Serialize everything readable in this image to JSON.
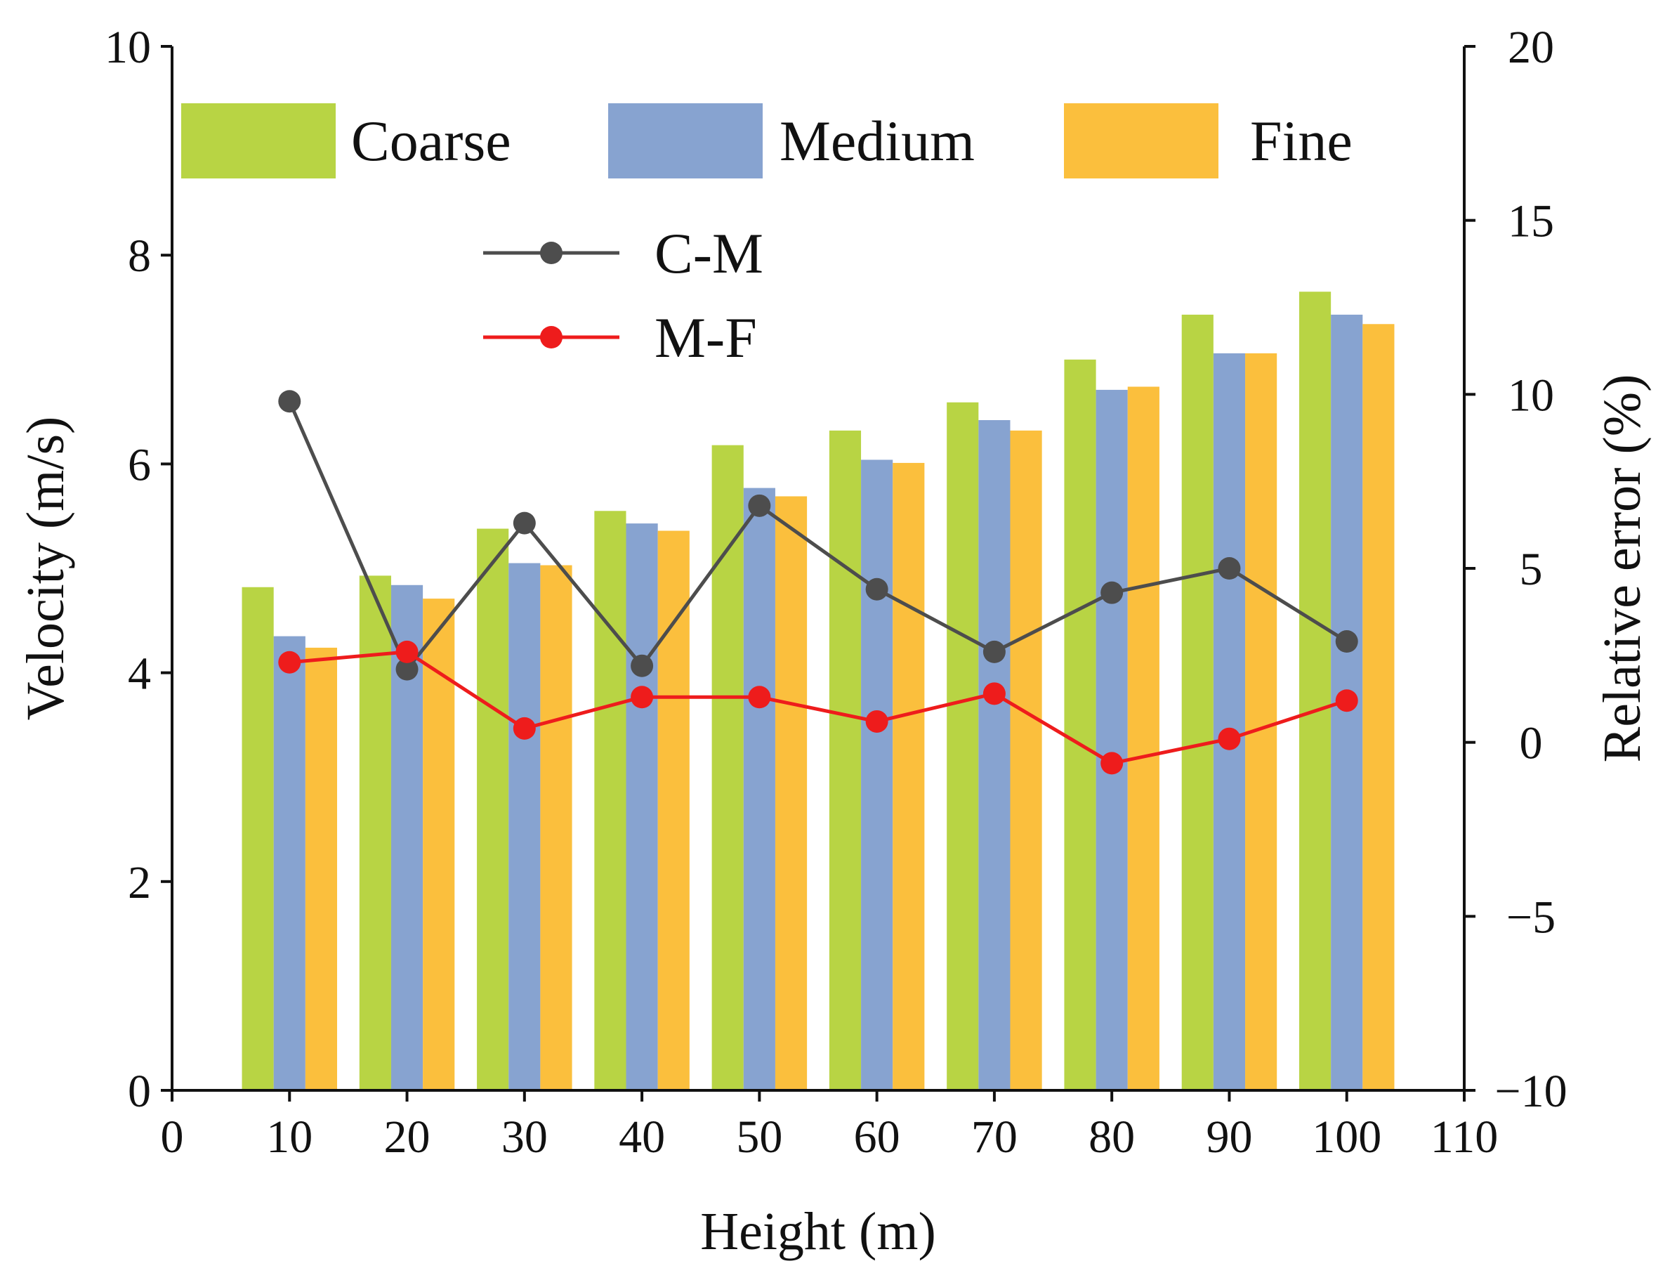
{
  "chart_data": {
    "type": "bar",
    "xlabel": "Height (m)",
    "ylabel": "Velocity (m/s)",
    "y2label": "Relative error (%)",
    "xlim": [
      0,
      110
    ],
    "ylim": [
      0,
      10
    ],
    "y2lim": [
      -10,
      20
    ],
    "xticks": [
      0,
      10,
      20,
      30,
      40,
      50,
      60,
      70,
      80,
      90,
      100,
      110
    ],
    "yticks": [
      0,
      2,
      4,
      6,
      8,
      10
    ],
    "y2ticks": [
      -10,
      -5,
      0,
      5,
      10,
      15,
      20
    ],
    "y2tick_labels": [
      "−10",
      "−5",
      "0",
      "5",
      "10",
      "15",
      "20"
    ],
    "categories": [
      10,
      20,
      30,
      40,
      50,
      60,
      70,
      80,
      90,
      100
    ],
    "series": [
      {
        "name": "Coarse",
        "axis": "left",
        "kind": "bar",
        "color": "#b8d444",
        "values": [
          4.82,
          4.93,
          5.38,
          5.55,
          6.18,
          6.32,
          6.59,
          7.0,
          7.43,
          7.65
        ]
      },
      {
        "name": "Medium",
        "axis": "left",
        "kind": "bar",
        "color": "#87a3d0",
        "values": [
          4.35,
          4.84,
          5.05,
          5.43,
          5.77,
          6.04,
          6.42,
          6.71,
          7.06,
          7.43
        ]
      },
      {
        "name": "Fine",
        "axis": "left",
        "kind": "bar",
        "color": "#fbbf3d",
        "values": [
          4.24,
          4.71,
          5.03,
          5.36,
          5.69,
          6.01,
          6.32,
          6.74,
          7.06,
          7.34
        ]
      },
      {
        "name": "C-M",
        "axis": "right",
        "kind": "line",
        "color": "#4d4d4d",
        "values": [
          9.8,
          2.1,
          6.3,
          2.2,
          6.8,
          4.4,
          2.6,
          4.3,
          5.0,
          2.9
        ]
      },
      {
        "name": "M-F",
        "axis": "right",
        "kind": "line",
        "color": "#ee1c1c",
        "values": [
          2.3,
          2.6,
          0.4,
          1.3,
          1.3,
          0.6,
          1.4,
          -0.6,
          0.1,
          1.2
        ]
      }
    ]
  }
}
